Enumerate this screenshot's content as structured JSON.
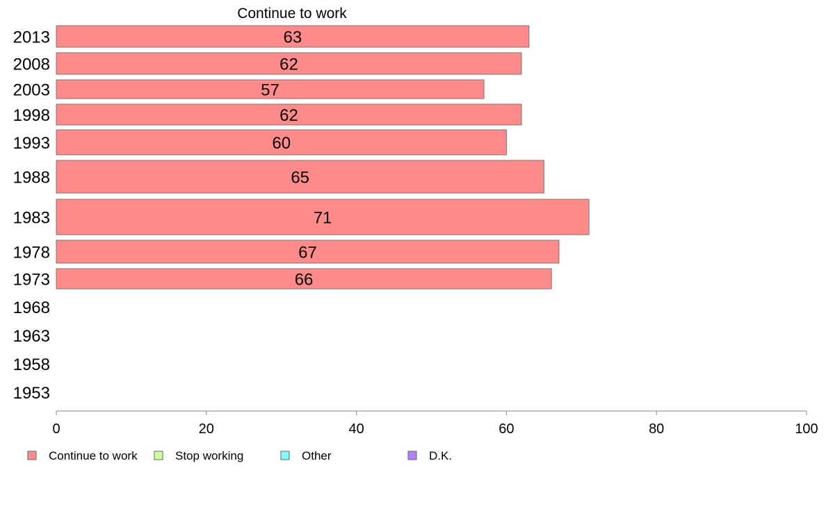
{
  "chart_data": {
    "type": "bar",
    "orientation": "horizontal",
    "title": "Continue to work",
    "categories": [
      "2013",
      "2008",
      "2003",
      "1998",
      "1993",
      "1988",
      "1983",
      "1978",
      "1973",
      "1968",
      "1963",
      "1958",
      "1953"
    ],
    "series": [
      {
        "name": "Continue to work",
        "values": [
          63,
          62,
          57,
          62,
          60,
          65,
          71,
          67,
          66,
          null,
          null,
          null,
          null
        ],
        "labels": [
          "63",
          "62",
          "57",
          "62",
          "60",
          "65",
          "71",
          "67",
          "66",
          "",
          "",
          "",
          ""
        ]
      }
    ],
    "xlim": [
      0,
      100
    ],
    "xticks": [
      "0",
      "20",
      "40",
      "60",
      "80",
      "100"
    ],
    "grid": false,
    "legend": {
      "placement": "bottom-left",
      "entries": [
        {
          "label": "Continue to work",
          "color": "#ff8a8a"
        },
        {
          "label": "Stop working",
          "color": "#ccff99"
        },
        {
          "label": "Other",
          "color": "#80ffff"
        },
        {
          "label": "D.K.",
          "color": "#b380ff"
        }
      ]
    },
    "colors": {
      "bar_fill": "#ff8a8a",
      "bar_stroke": "#8c6c6c",
      "axis": "#888888"
    }
  }
}
